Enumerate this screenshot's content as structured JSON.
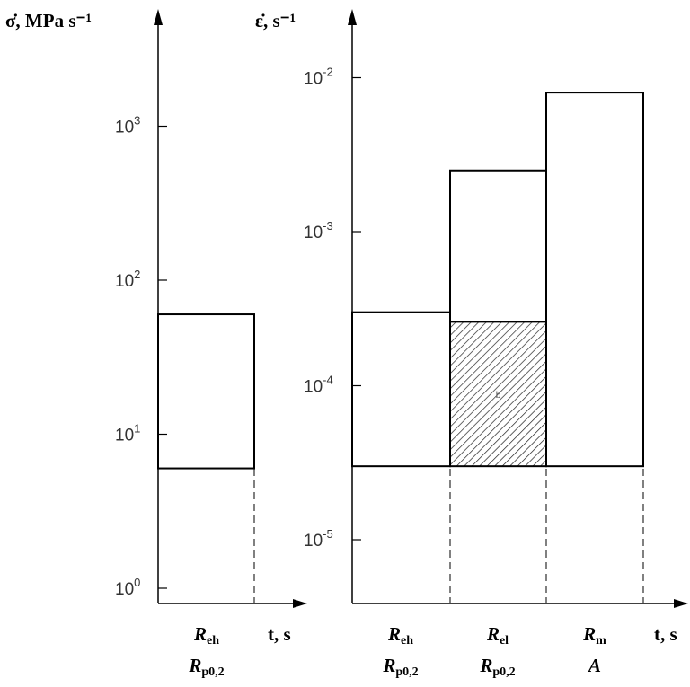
{
  "chart_data": [
    {
      "type": "bar",
      "scale": "log",
      "ylabel": "σ̇, MPa s⁻¹",
      "xlabel": "t, s",
      "ylim": [
        1,
        1000
      ],
      "yticks": [
        {
          "base": "10",
          "exp": "0",
          "value": 1
        },
        {
          "base": "10",
          "exp": "1",
          "value": 10
        },
        {
          "base": "10",
          "exp": "2",
          "value": 100
        },
        {
          "base": "10",
          "exp": "3",
          "value": 1000
        }
      ],
      "phases": [
        {
          "labels": [
            {
              "main": "R",
              "sub": "eh"
            },
            {
              "main": "R",
              "sub": "p0,2"
            }
          ],
          "low": 6,
          "high": 60,
          "hatched": false
        }
      ]
    },
    {
      "type": "bar",
      "scale": "log",
      "ylabel": "ε̇, s⁻¹",
      "xlabel": "t, s",
      "ylim": [
        1e-05,
        0.01
      ],
      "yticks": [
        {
          "base": "10",
          "exp": "-5",
          "value": 1e-05
        },
        {
          "base": "10",
          "exp": "-4",
          "value": 0.0001
        },
        {
          "base": "10",
          "exp": "-3",
          "value": 0.001
        },
        {
          "base": "10",
          "exp": "-2",
          "value": 0.01
        }
      ],
      "phases": [
        {
          "labels": [
            {
              "main": "R",
              "sub": "eh"
            },
            {
              "main": "R",
              "sub": "p0,2"
            }
          ],
          "low": 3e-05,
          "high": 0.0003,
          "hatched": false
        },
        {
          "labels": [
            {
              "main": "R",
              "sub": "el"
            },
            {
              "main": "R",
              "sub": "p0,2"
            }
          ],
          "low": 3e-05,
          "high": 0.0025,
          "hatched_high": 0.00026,
          "hatched": true,
          "note": "b"
        },
        {
          "labels": [
            {
              "main": "R",
              "sub": "m"
            },
            {
              "main": "A",
              "sub": ""
            }
          ],
          "low": 3e-05,
          "high": 0.008,
          "hatched": false
        }
      ]
    }
  ],
  "colors": {
    "line": "#000000",
    "tick_text": "#333333",
    "hatch": "#222222"
  }
}
